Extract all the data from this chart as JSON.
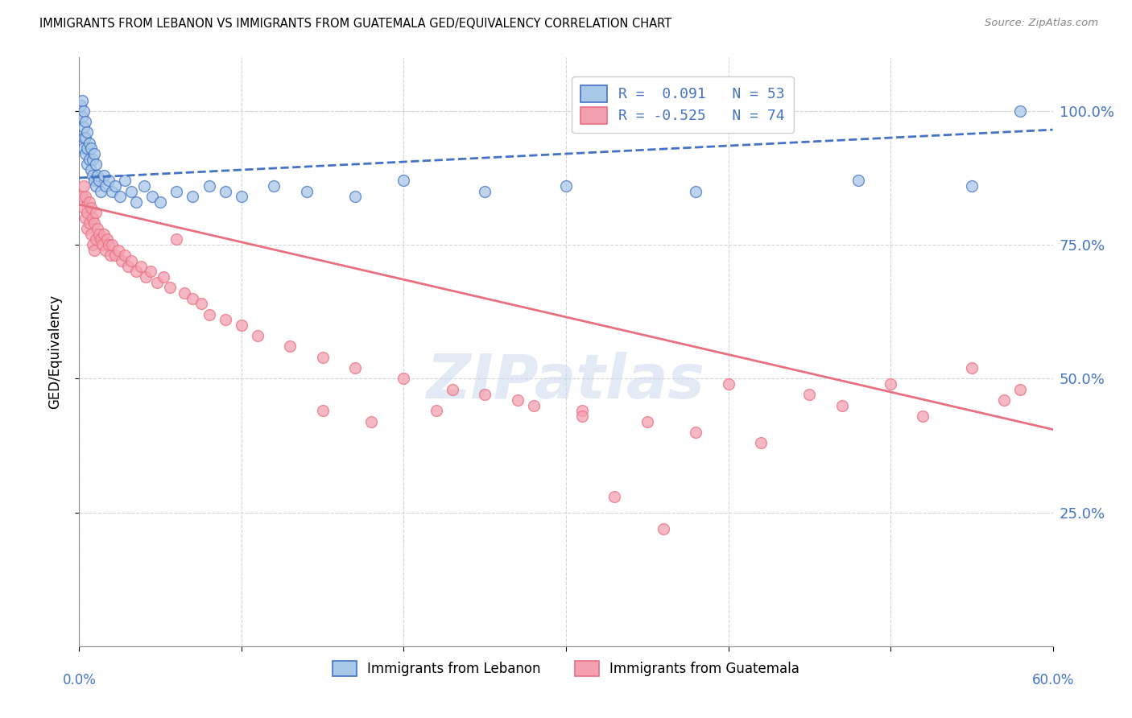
{
  "title": "IMMIGRANTS FROM LEBANON VS IMMIGRANTS FROM GUATEMALA GED/EQUIVALENCY CORRELATION CHART",
  "source": "Source: ZipAtlas.com",
  "ylabel": "GED/Equivalency",
  "xlim": [
    0.0,
    0.6
  ],
  "ylim": [
    0.0,
    1.1
  ],
  "ytick_vals": [
    0.25,
    0.5,
    0.75,
    1.0
  ],
  "ytick_labels": [
    "25.0%",
    "50.0%",
    "75.0%",
    "100.0%"
  ],
  "xtick_positions": [
    0.0,
    0.1,
    0.2,
    0.3,
    0.4,
    0.5,
    0.6
  ],
  "legend_R_lebanon": " 0.091",
  "legend_N_lebanon": "53",
  "legend_R_guatemala": "-0.525",
  "legend_N_guatemala": "74",
  "color_lebanon": "#a8c8e8",
  "color_guatemala": "#f4a0b0",
  "color_line_lebanon": "#4472c4",
  "color_line_guatemala": "#e87080",
  "color_axis_blue": "#4472c4",
  "background_color": "#ffffff",
  "watermark_text": "ZIPatlas",
  "lebanon_line_x": [
    0.0,
    0.6
  ],
  "lebanon_line_y": [
    0.875,
    0.965
  ],
  "guatemala_line_x": [
    0.0,
    0.6
  ],
  "guatemala_line_y": [
    0.825,
    0.405
  ],
  "lebanon_x": [
    0.001,
    0.002,
    0.002,
    0.003,
    0.003,
    0.003,
    0.003,
    0.004,
    0.004,
    0.004,
    0.005,
    0.005,
    0.005,
    0.006,
    0.006,
    0.007,
    0.007,
    0.008,
    0.008,
    0.009,
    0.009,
    0.01,
    0.01,
    0.011,
    0.012,
    0.013,
    0.015,
    0.016,
    0.018,
    0.02,
    0.022,
    0.025,
    0.028,
    0.032,
    0.035,
    0.04,
    0.045,
    0.05,
    0.06,
    0.07,
    0.08,
    0.09,
    0.1,
    0.12,
    0.14,
    0.17,
    0.2,
    0.25,
    0.3,
    0.38,
    0.48,
    0.55,
    0.58
  ],
  "lebanon_y": [
    1.01,
    1.02,
    0.99,
    1.0,
    0.97,
    0.95,
    0.93,
    0.98,
    0.95,
    0.92,
    0.96,
    0.93,
    0.9,
    0.94,
    0.91,
    0.93,
    0.89,
    0.91,
    0.88,
    0.92,
    0.87,
    0.9,
    0.86,
    0.88,
    0.87,
    0.85,
    0.88,
    0.86,
    0.87,
    0.85,
    0.86,
    0.84,
    0.87,
    0.85,
    0.83,
    0.86,
    0.84,
    0.83,
    0.85,
    0.84,
    0.86,
    0.85,
    0.84,
    0.86,
    0.85,
    0.84,
    0.87,
    0.85,
    0.86,
    0.85,
    0.87,
    0.86,
    1.0
  ],
  "guatemala_x": [
    0.002,
    0.003,
    0.003,
    0.004,
    0.004,
    0.005,
    0.005,
    0.006,
    0.006,
    0.007,
    0.007,
    0.008,
    0.008,
    0.009,
    0.009,
    0.01,
    0.01,
    0.011,
    0.012,
    0.013,
    0.014,
    0.015,
    0.016,
    0.017,
    0.018,
    0.019,
    0.02,
    0.022,
    0.024,
    0.026,
    0.028,
    0.03,
    0.032,
    0.035,
    0.038,
    0.041,
    0.044,
    0.048,
    0.052,
    0.056,
    0.06,
    0.065,
    0.07,
    0.075,
    0.08,
    0.09,
    0.1,
    0.11,
    0.13,
    0.15,
    0.17,
    0.2,
    0.23,
    0.27,
    0.31,
    0.35,
    0.4,
    0.45,
    0.5,
    0.55,
    0.31,
    0.28,
    0.25,
    0.22,
    0.38,
    0.42,
    0.18,
    0.15,
    0.52,
    0.47,
    0.57,
    0.58,
    0.33,
    0.36
  ],
  "guatemala_y": [
    0.84,
    0.82,
    0.86,
    0.8,
    0.84,
    0.81,
    0.78,
    0.83,
    0.79,
    0.82,
    0.77,
    0.8,
    0.75,
    0.79,
    0.74,
    0.81,
    0.76,
    0.78,
    0.77,
    0.76,
    0.75,
    0.77,
    0.74,
    0.76,
    0.75,
    0.73,
    0.75,
    0.73,
    0.74,
    0.72,
    0.73,
    0.71,
    0.72,
    0.7,
    0.71,
    0.69,
    0.7,
    0.68,
    0.69,
    0.67,
    0.76,
    0.66,
    0.65,
    0.64,
    0.62,
    0.61,
    0.6,
    0.58,
    0.56,
    0.54,
    0.52,
    0.5,
    0.48,
    0.46,
    0.44,
    0.42,
    0.49,
    0.47,
    0.49,
    0.52,
    0.43,
    0.45,
    0.47,
    0.44,
    0.4,
    0.38,
    0.42,
    0.44,
    0.43,
    0.45,
    0.46,
    0.48,
    0.28,
    0.22
  ]
}
